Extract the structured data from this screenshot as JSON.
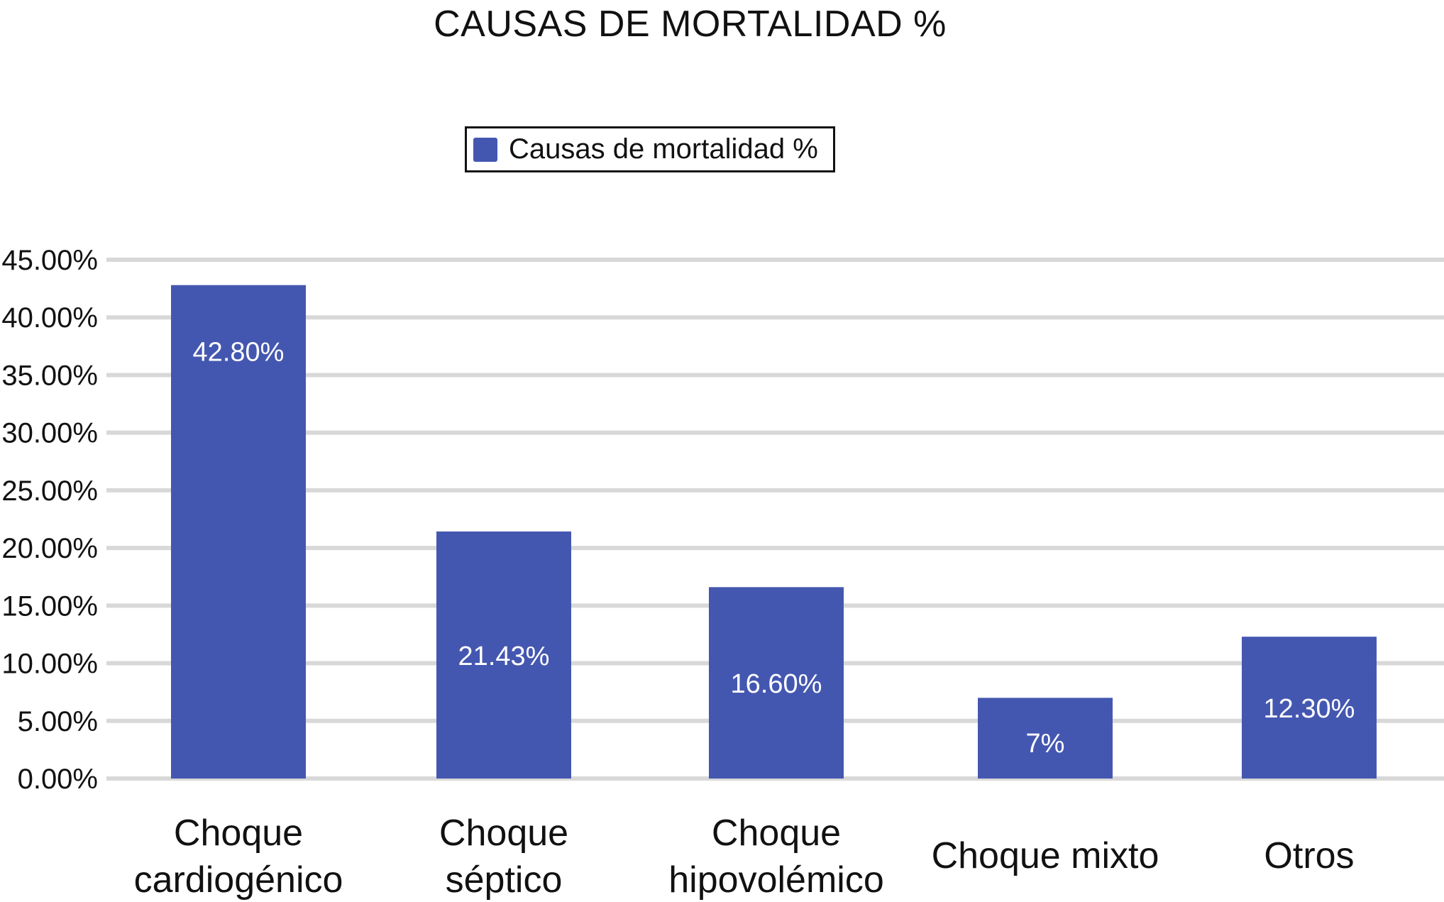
{
  "chart_data": {
    "type": "bar",
    "title": "CAUSAS DE MORTALIDAD %",
    "xlabel": "",
    "ylabel": "",
    "categories": [
      [
        "Choque",
        "cardiogénico"
      ],
      [
        "Choque",
        "séptico"
      ],
      [
        "Choque",
        "hipovolémico"
      ],
      [
        "Choque mixto"
      ],
      [
        "Otros"
      ]
    ],
    "series": [
      {
        "name": "Causas de mortalidad %",
        "values": [
          42.8,
          21.43,
          16.6,
          7,
          12.3
        ],
        "data_labels": [
          "42.80%",
          "21.43%",
          "16.60%",
          "7%",
          "12.30%"
        ],
        "color": "#4457B0"
      }
    ],
    "ylim": [
      0,
      45
    ],
    "y_ticks": [
      {
        "value": 0,
        "label": "0.00%"
      },
      {
        "value": 5,
        "label": "5.00%"
      },
      {
        "value": 10,
        "label": "10.00%"
      },
      {
        "value": 15,
        "label": "15.00%"
      },
      {
        "value": 20,
        "label": "20.00%"
      },
      {
        "value": 25,
        "label": "25.00%"
      },
      {
        "value": 30,
        "label": "30.00%"
      },
      {
        "value": 35,
        "label": "35.00%"
      },
      {
        "value": 40,
        "label": "40.00%"
      },
      {
        "value": 45,
        "label": "45.00%"
      }
    ],
    "grid": true,
    "legend_position": "top-center",
    "gridline_color": "#D8D8D8",
    "text_color": "#111111"
  }
}
